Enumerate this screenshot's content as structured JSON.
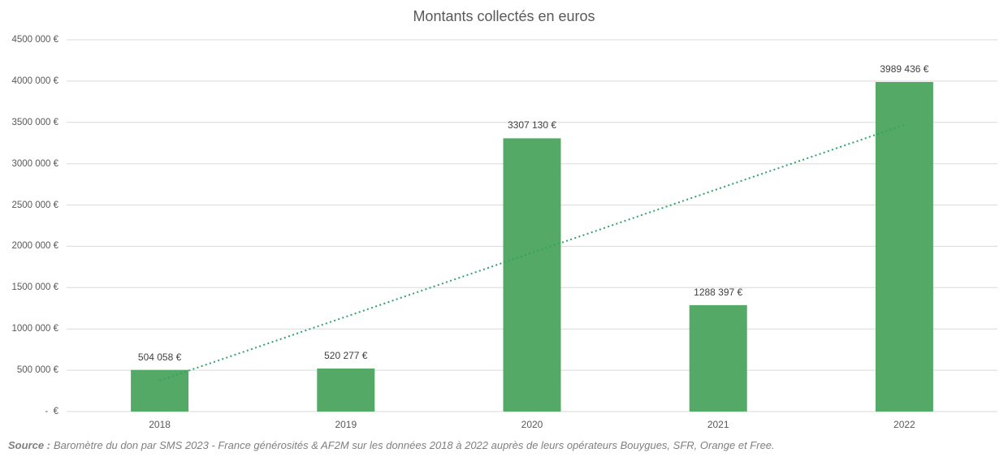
{
  "title": "Montants collectés en euros",
  "footer": {
    "source_label": "Source :",
    "source_text": "Baromètre du don par SMS 2023 - France générosités & AF2M sur les données 2018 à 2022 auprès de leurs opérateurs Bouygues, SFR, Orange et Free."
  },
  "colors": {
    "bar": "#55A966",
    "trendline": "#2EA36B",
    "gridline": "#D9D9D9",
    "title_text": "#595959",
    "axis_text": "#595959",
    "data_label_text": "#404040",
    "footer_text": "#808080"
  },
  "chart_data": {
    "type": "bar",
    "title": "Montants collectés en euros",
    "categories": [
      "2018",
      "2019",
      "2020",
      "2021",
      "2022"
    ],
    "values": [
      504058,
      520277,
      3307130,
      1288397,
      3989436
    ],
    "value_labels": [
      "504 058 €",
      "520 277 €",
      "3307 130 €",
      "1288 397 €",
      "3989 436 €"
    ],
    "xlabel": "",
    "ylabel": "",
    "ylim": [
      0,
      4500000
    ],
    "y_tick_step": 500000,
    "y_tick_labels": [
      "-  €",
      "500 000 €",
      "1000 000 €",
      "1500 000 €",
      "2000 000 €",
      "2500 000 €",
      "3000 000 €",
      "3500 000 €",
      "4000 000 €",
      "4500 000 €"
    ],
    "grid": true,
    "legend": false,
    "trendline": {
      "type": "linear",
      "style": "dotted"
    }
  }
}
